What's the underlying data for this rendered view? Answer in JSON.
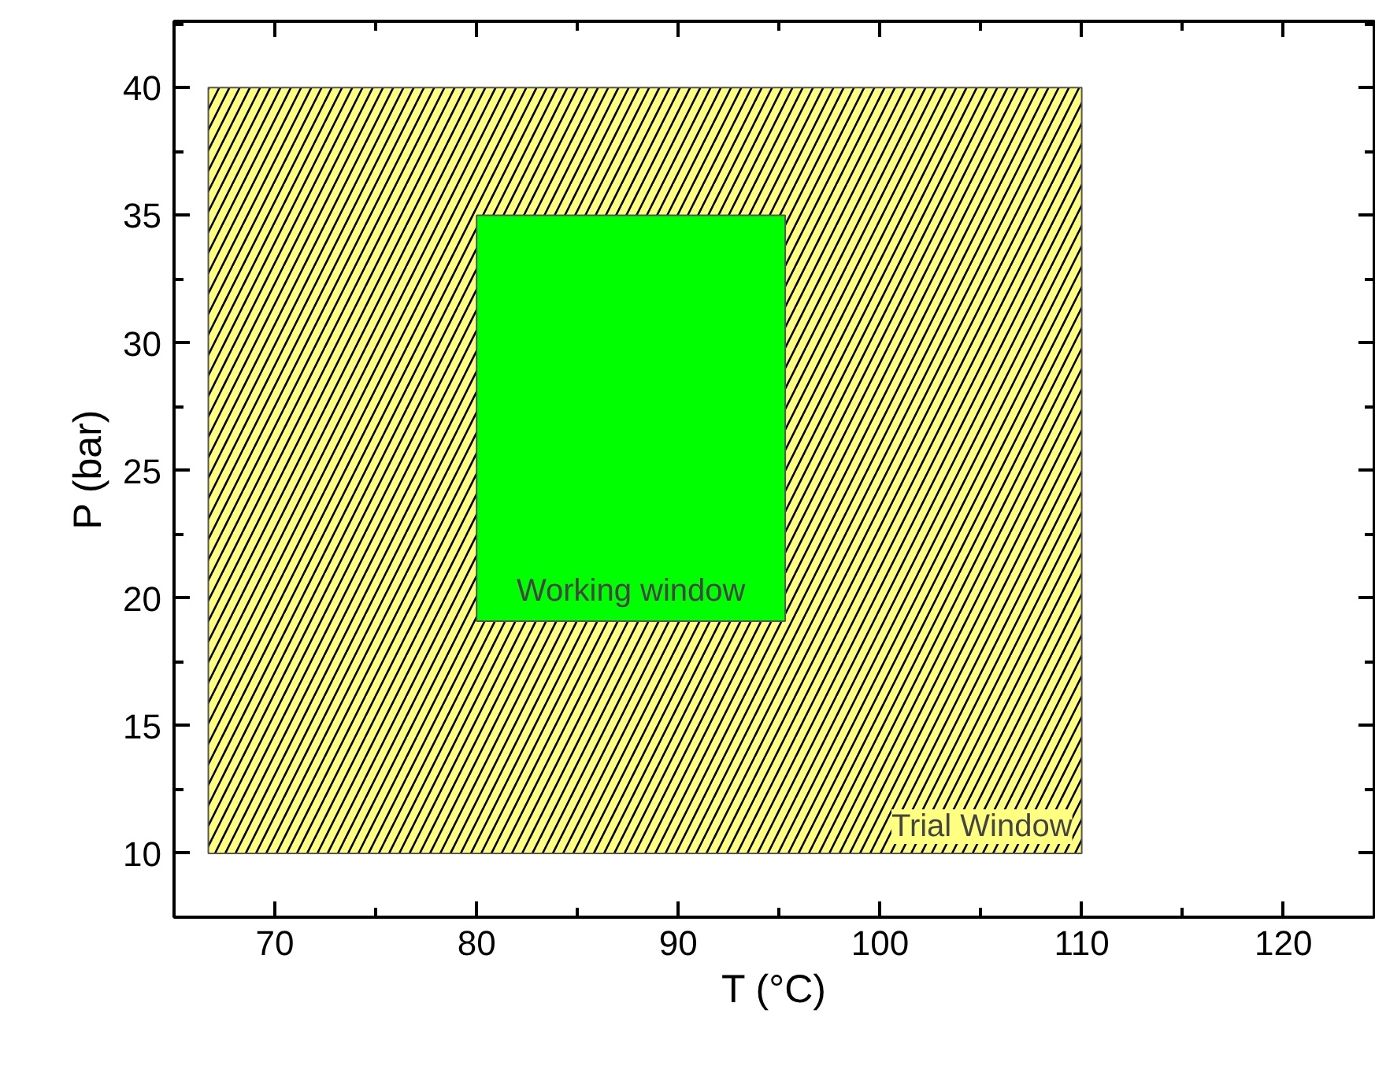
{
  "chart_data": {
    "type": "area",
    "xlabel": "T (°C)",
    "ylabel": "P (bar)",
    "xlim": [
      65,
      124.5
    ],
    "ylim": [
      7.5,
      42.6
    ],
    "xticks": [
      70,
      80,
      90,
      100,
      110,
      120
    ],
    "yticks": [
      10,
      15,
      20,
      25,
      30,
      35,
      40
    ],
    "grid": false,
    "series": [
      {
        "color": "#ffff80",
        "x": [
          66.7,
          66.7,
          110,
          110
        ],
        "values": [
          10,
          40,
          40,
          10
        ]
      },
      {
        "color": "#00ff00",
        "x": [
          80,
          80,
          95.3,
          95.3
        ],
        "values": [
          19.1,
          35,
          35,
          19.1
        ]
      }
    ],
    "annotations": [
      "Working window",
      "Trial Window"
    ]
  }
}
